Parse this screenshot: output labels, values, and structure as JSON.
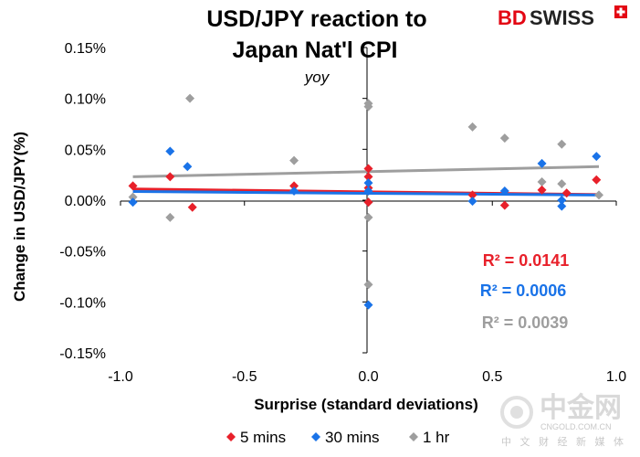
{
  "brand": {
    "bd": "BD",
    "swiss": "SWISS"
  },
  "watermark": {
    "name": "中金网",
    "site": "CNGOLD.COM.CN",
    "tagline": "中 文 财 经 新 媒 体"
  },
  "colors": {
    "five_mins": "#e8202a",
    "thirty_mins": "#1a73e8",
    "one_hr": "#9e9e9e",
    "brand_red": "#e30613",
    "axis": "#000000"
  },
  "chart_data": {
    "type": "scatter",
    "title": [
      "USD/JPY reaction to",
      "Japan Nat'l CPI"
    ],
    "subtitle": "yoy",
    "xlabel": "Surprise (standard deviations)",
    "ylabel": "Change in USD/JPY(%)",
    "xlim": [
      -1.0,
      1.0
    ],
    "ylim": [
      -0.15,
      0.15
    ],
    "xticks": [
      -1.0,
      -0.5,
      0.0,
      0.5,
      1.0
    ],
    "xtick_labels": [
      "-1.0",
      "-0.5",
      "0.0",
      "0.5",
      "1.0"
    ],
    "yticks": [
      0.15,
      0.1,
      0.05,
      0.0,
      -0.05,
      -0.1,
      -0.15
    ],
    "ytick_labels": [
      "0.15%",
      "0.10%",
      "0.05%",
      "0.00%",
      "-0.05%",
      "-0.10%",
      "-0.15%"
    ],
    "grid": false,
    "legend_position": "bottom",
    "series": [
      {
        "key": "five_mins",
        "name": "5 mins",
        "r2_label": "R² = 0.0141",
        "trend": [
          [
            -0.95,
            0.011
          ],
          [
            0.93,
            0.0055
          ]
        ],
        "points": [
          [
            -0.95,
            0.014
          ],
          [
            -0.8,
            0.023
          ],
          [
            -0.71,
            -0.007
          ],
          [
            -0.3,
            0.014
          ],
          [
            0.0,
            0.031
          ],
          [
            0.0,
            0.023
          ],
          [
            0.0,
            0.012
          ],
          [
            0.0,
            -0.002
          ],
          [
            0.42,
            0.005
          ],
          [
            0.55,
            -0.005
          ],
          [
            0.7,
            0.01
          ],
          [
            0.8,
            0.007
          ],
          [
            0.92,
            0.02
          ]
        ]
      },
      {
        "key": "thirty_mins",
        "name": "30 mins",
        "r2_label": "R² = 0.0006",
        "trend": [
          [
            -0.95,
            0.0085
          ],
          [
            0.93,
            0.005
          ]
        ],
        "points": [
          [
            -0.95,
            -0.002
          ],
          [
            -0.8,
            0.048
          ],
          [
            -0.73,
            0.033
          ],
          [
            -0.3,
            0.009
          ],
          [
            0.0,
            0.017
          ],
          [
            0.0,
            0.009
          ],
          [
            0.0,
            -0.103
          ],
          [
            0.42,
            -0.001
          ],
          [
            0.55,
            0.009
          ],
          [
            0.7,
            0.036
          ],
          [
            0.78,
            -0.006
          ],
          [
            0.78,
            0.0
          ],
          [
            0.92,
            0.043
          ]
        ]
      },
      {
        "key": "one_hr",
        "name": "1 hr",
        "r2_label": "R² = 0.0039",
        "trend": [
          [
            -0.95,
            0.023
          ],
          [
            0.93,
            0.033
          ]
        ],
        "points": [
          [
            -0.95,
            0.003
          ],
          [
            -0.8,
            -0.017
          ],
          [
            -0.72,
            0.1
          ],
          [
            -0.3,
            0.039
          ],
          [
            0.0,
            0.095
          ],
          [
            0.0,
            0.092
          ],
          [
            0.0,
            -0.002
          ],
          [
            0.0,
            -0.017
          ],
          [
            0.0,
            -0.083
          ],
          [
            0.42,
            0.072
          ],
          [
            0.55,
            0.061
          ],
          [
            0.7,
            0.018
          ],
          [
            0.78,
            0.055
          ],
          [
            0.78,
            0.016
          ],
          [
            0.93,
            0.005
          ]
        ]
      }
    ]
  }
}
